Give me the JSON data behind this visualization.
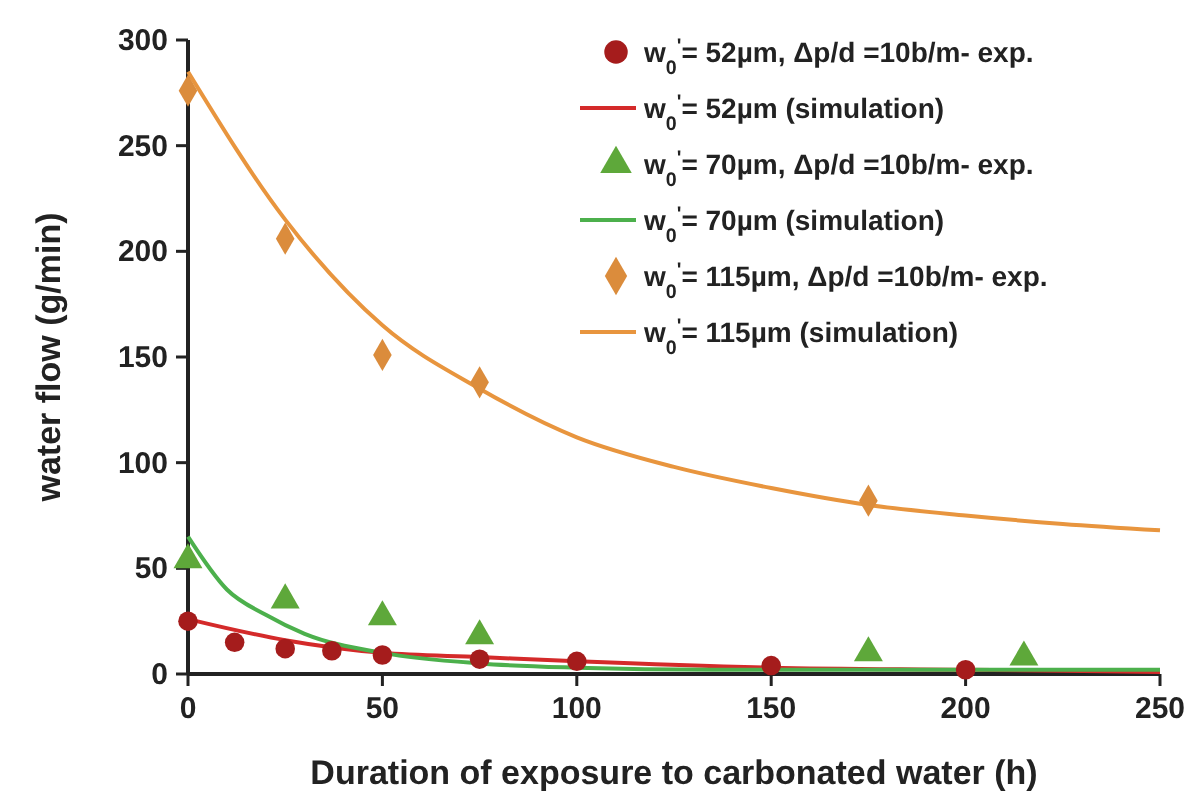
{
  "chart_data": {
    "type": "scatter",
    "xlabel": "Duration of exposure to carbonated water (h)",
    "ylabel": "water flow (g/min)",
    "xlim": [
      0,
      250
    ],
    "ylim": [
      0,
      300
    ],
    "xticks": [
      0,
      50,
      100,
      150,
      200,
      250
    ],
    "yticks": [
      0,
      50,
      100,
      150,
      200,
      250,
      300
    ],
    "grid": false,
    "legend": "top right",
    "series": [
      {
        "name": "w$_{0}$$^{'}$= 52µm, Δp/d =10b/m- exp.",
        "marker": "circle",
        "color": "#a51c1c",
        "x": [
          0,
          12,
          25,
          37,
          50,
          75,
          100,
          150,
          200
        ],
        "values": [
          25,
          15,
          12,
          11,
          9,
          7,
          6,
          4,
          2
        ]
      },
      {
        "name": "w$_{0}$$^{'}$= 52µm (simulation)",
        "type": "line",
        "marker": "none",
        "color": "#d42a2a",
        "x": [
          0,
          25,
          50,
          75,
          100,
          150,
          200,
          250
        ],
        "values": [
          26,
          16,
          10,
          8,
          6,
          3,
          2,
          1
        ]
      },
      {
        "name": "w$_{0}$$^{'}$= 70µm, Δp/d =10b/m- exp.",
        "marker": "triangle",
        "color": "#5ea83a",
        "x": [
          0,
          25,
          50,
          75,
          175,
          215
        ],
        "values": [
          54,
          35,
          27,
          18,
          10,
          8
        ]
      },
      {
        "name": "w$_{0}$$^{'}$= 70µm (simulation)",
        "type": "line",
        "marker": "none",
        "color": "#4cb04c",
        "x": [
          0,
          10,
          20,
          30,
          50,
          75,
          100,
          135,
          250
        ],
        "values": [
          65,
          40,
          28,
          19,
          10,
          5,
          3,
          2,
          2
        ]
      },
      {
        "name": "w$_{0}$$^{'}$= 115µm, Δp/d =10b/m- exp.",
        "marker": "diamond",
        "color": "#db8c3c",
        "x": [
          0,
          25,
          50,
          75,
          175
        ],
        "values": [
          276,
          206,
          151,
          138,
          82
        ]
      },
      {
        "name": "w$_{0}$$^{'}$= 115µm (simulation)",
        "type": "line",
        "marker": "none",
        "color": "#e8953e",
        "x": [
          0,
          25,
          50,
          75,
          100,
          125,
          150,
          175,
          200,
          225,
          250
        ],
        "values": [
          285,
          215,
          165,
          135,
          112,
          98,
          88,
          80,
          75,
          71,
          68
        ]
      }
    ]
  }
}
